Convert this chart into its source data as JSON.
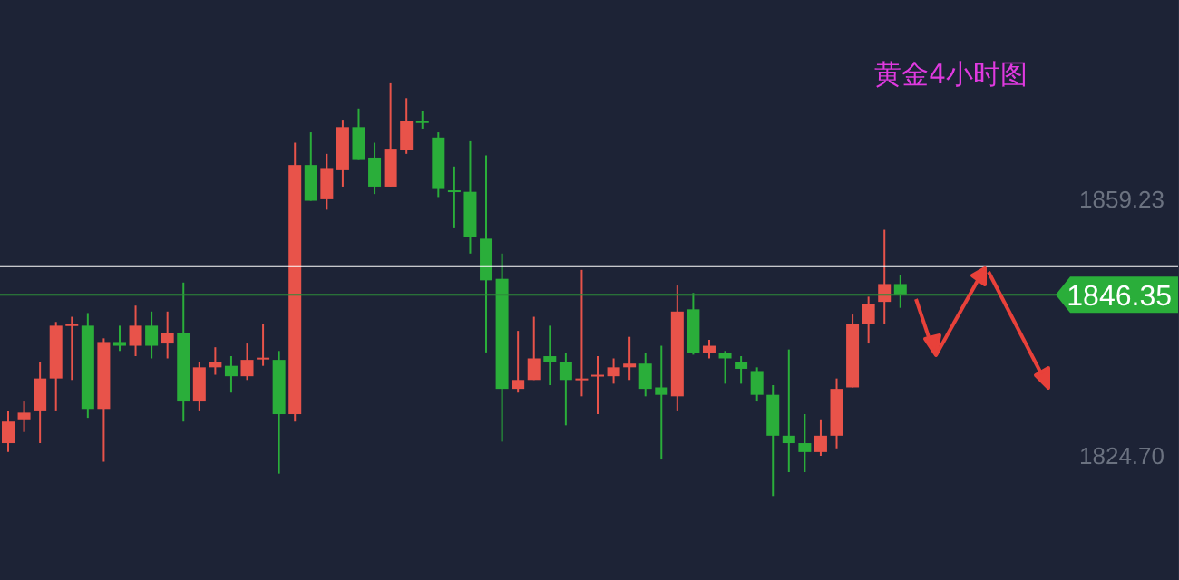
{
  "chart_data": {
    "type": "candlestick",
    "title": "黄金4小时图",
    "categories": [
      null,
      null,
      null,
      null,
      null,
      null,
      null,
      null,
      null,
      null,
      null,
      null,
      null,
      null,
      null,
      null,
      null,
      null,
      null,
      null,
      null,
      null,
      null,
      null,
      null,
      null,
      null,
      null,
      null,
      null,
      null,
      null,
      null,
      null,
      null,
      null,
      null,
      null,
      null,
      null,
      null,
      null,
      null,
      null,
      null,
      null,
      null,
      null,
      null,
      null,
      null,
      null,
      null,
      null,
      null,
      null,
      null,
      null,
      null,
      null,
      null,
      null,
      null,
      null,
      null,
      null,
      null,
      null,
      null,
      null,
      null,
      null,
      null,
      null
    ],
    "ohlc": [
      [
        1826.4,
        1830.8,
        1825.2,
        1829.3
      ],
      [
        1829.6,
        1832.0,
        1827.9,
        1830.5
      ],
      [
        1830.8,
        1837.3,
        1826.4,
        1835.1
      ],
      [
        1835.1,
        1842.7,
        1830.8,
        1842.2
      ],
      [
        1842.3,
        1843.4,
        1834.9,
        1842.4
      ],
      [
        1842.2,
        1843.9,
        1829.8,
        1831.0
      ],
      [
        1831.0,
        1840.5,
        1823.9,
        1840.0
      ],
      [
        1840.0,
        1842.2,
        1838.8,
        1839.5
      ],
      [
        1839.5,
        1844.9,
        1838.1,
        1842.2
      ],
      [
        1842.2,
        1844.1,
        1837.8,
        1839.5
      ],
      [
        1839.8,
        1844.1,
        1837.8,
        1841.2
      ],
      [
        1841.2,
        1848.0,
        1829.3,
        1832.0
      ],
      [
        1832.0,
        1837.3,
        1830.8,
        1836.6
      ],
      [
        1836.6,
        1839.3,
        1835.6,
        1837.3
      ],
      [
        1836.8,
        1838.1,
        1833.2,
        1835.4
      ],
      [
        1835.4,
        1839.8,
        1834.9,
        1837.6
      ],
      [
        1837.8,
        1842.4,
        1836.8,
        1837.9
      ],
      [
        1837.6,
        1838.8,
        1822.3,
        1830.3
      ],
      [
        1830.3,
        1866.8,
        1829.3,
        1863.8
      ],
      [
        1863.8,
        1868.2,
        1859.0,
        1859.0
      ],
      [
        1859.2,
        1865.3,
        1857.8,
        1863.4
      ],
      [
        1863.1,
        1869.9,
        1860.9,
        1868.9
      ],
      [
        1868.9,
        1871.4,
        1864.6,
        1864.6
      ],
      [
        1864.8,
        1866.8,
        1859.9,
        1860.9
      ],
      [
        1860.9,
        1874.8,
        1860.9,
        1866.0
      ],
      [
        1865.8,
        1872.8,
        1865.3,
        1869.7
      ],
      [
        1869.7,
        1871.1,
        1868.7,
        1869.6
      ],
      [
        1867.5,
        1868.2,
        1859.5,
        1860.7
      ],
      [
        1860.4,
        1863.6,
        1855.3,
        1860.3
      ],
      [
        1860.2,
        1867.0,
        1851.9,
        1854.1
      ],
      [
        1853.9,
        1865.1,
        1838.6,
        1848.3
      ],
      [
        1848.5,
        1851.9,
        1826.6,
        1833.7
      ],
      [
        1833.7,
        1841.5,
        1833.2,
        1834.9
      ],
      [
        1834.9,
        1843.4,
        1834.9,
        1837.8
      ],
      [
        1838.1,
        1842.2,
        1834.2,
        1837.3
      ],
      [
        1837.3,
        1838.5,
        1828.8,
        1834.9
      ],
      [
        1835.0,
        1849.7,
        1832.7,
        1835.1
      ],
      [
        1835.5,
        1838.1,
        1830.3,
        1835.6
      ],
      [
        1835.4,
        1837.8,
        1834.4,
        1836.6
      ],
      [
        1836.6,
        1840.7,
        1834.9,
        1837.1
      ],
      [
        1837.1,
        1838.5,
        1832.7,
        1833.7
      ],
      [
        1833.9,
        1839.5,
        1824.2,
        1832.9
      ],
      [
        1832.7,
        1847.6,
        1830.8,
        1844.1
      ],
      [
        1844.4,
        1846.6,
        1838.3,
        1838.5
      ],
      [
        1838.5,
        1840.3,
        1837.8,
        1839.5
      ],
      [
        1838.5,
        1838.8,
        1834.4,
        1837.8
      ],
      [
        1837.3,
        1838.1,
        1834.4,
        1836.4
      ],
      [
        1836.1,
        1836.6,
        1832.0,
        1832.9
      ],
      [
        1832.9,
        1834.2,
        1819.3,
        1827.4
      ],
      [
        1827.4,
        1839.0,
        1822.5,
        1826.4
      ],
      [
        1826.4,
        1830.3,
        1822.5,
        1825.2
      ],
      [
        1825.2,
        1829.6,
        1824.7,
        1827.4
      ],
      [
        1827.4,
        1835.1,
        1825.7,
        1833.7
      ],
      [
        1833.9,
        1843.7,
        1833.9,
        1842.4
      ],
      [
        1842.4,
        1846.1,
        1839.8,
        1845.1
      ],
      [
        1845.4,
        1855.1,
        1842.4,
        1847.8
      ],
      [
        1847.8,
        1849.0,
        1844.6,
        1846.3
      ],
      null,
      null,
      null,
      null,
      null,
      null,
      null,
      null,
      null,
      null,
      null,
      null,
      null,
      null,
      null,
      null,
      null
    ],
    "colors": [
      "#e8534a",
      "#e8534a",
      "#e8534a",
      "#e8534a",
      "#e8534a",
      "#2aae3a",
      "#e8534a",
      "#2aae3a",
      "#e8534a",
      "#2aae3a",
      "#e8534a",
      "#2aae3a",
      "#e8534a",
      "#e8534a",
      "#2aae3a",
      "#e8534a",
      "#e8534a",
      "#2aae3a",
      "#e8534a",
      "#2aae3a",
      "#e8534a",
      "#e8534a",
      "#2aae3a",
      "#2aae3a",
      "#e8534a",
      "#e8534a",
      "#2aae3a",
      "#2aae3a",
      "#2aae3a",
      "#2aae3a",
      "#2aae3a",
      "#2aae3a",
      "#e8534a",
      "#e8534a",
      "#2aae3a",
      "#2aae3a",
      "#e8534a",
      "#e8534a",
      "#e8534a",
      "#e8534a",
      "#2aae3a",
      "#2aae3a",
      "#e8534a",
      "#2aae3a",
      "#e8534a",
      "#2aae3a",
      "#2aae3a",
      "#2aae3a",
      "#2aae3a",
      "#2aae3a",
      "#2aae3a",
      "#e8534a",
      "#e8534a",
      "#e8534a",
      "#e8534a",
      "#e8534a",
      "#2aae3a",
      null,
      null,
      null,
      null,
      null,
      null,
      null,
      null,
      null,
      null,
      null,
      null,
      null,
      null,
      null,
      null,
      null
    ],
    "ylim": [
      1808,
      1886
    ],
    "yticks": [
      1859.23,
      {
        "value": 1824.7,
        "label": "1824.70"
      }
    ],
    "ref_lines": [
      {
        "axis": "y",
        "value": 1846.35,
        "label": "1846.35",
        "color": "#2e8b3a"
      },
      {
        "axis": "y",
        "value": 1850.2,
        "color": "#ffffff"
      }
    ],
    "grid": false
  }
}
